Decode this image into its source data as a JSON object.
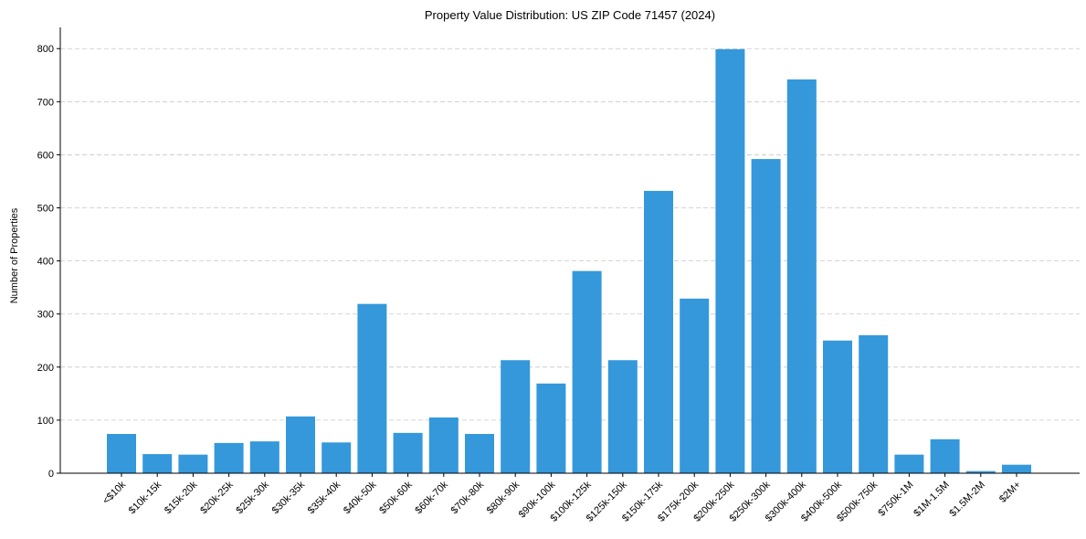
{
  "chart_data": {
    "type": "bar",
    "title": "Property Value Distribution: US ZIP Code 71457 (2024)",
    "xlabel": "",
    "ylabel": "Number of Properties",
    "ylim": [
      0,
      840
    ],
    "yticks": [
      0,
      100,
      200,
      300,
      400,
      500,
      600,
      700,
      800
    ],
    "grid": "y-dashed",
    "bar_color": "#3498db",
    "categories": [
      "<$10k",
      "$10k-15k",
      "$15k-20k",
      "$20k-25k",
      "$25k-30k",
      "$30k-35k",
      "$35k-40k",
      "$40k-50k",
      "$50k-60k",
      "$60k-70k",
      "$70k-80k",
      "$80k-90k",
      "$90k-100k",
      "$100k-125k",
      "$125k-150k",
      "$150k-175k",
      "$175k-200k",
      "$200k-250k",
      "$250k-300k",
      "$300k-400k",
      "$400k-500k",
      "$500k-750k",
      "$750k-1M",
      "$1M-1.5M",
      "$1.5M-2M",
      "$2M+"
    ],
    "values": [
      74,
      36,
      35,
      57,
      60,
      107,
      58,
      319,
      76,
      105,
      74,
      213,
      169,
      381,
      213,
      532,
      329,
      799,
      592,
      742,
      250,
      260,
      35,
      64,
      4,
      16
    ]
  }
}
